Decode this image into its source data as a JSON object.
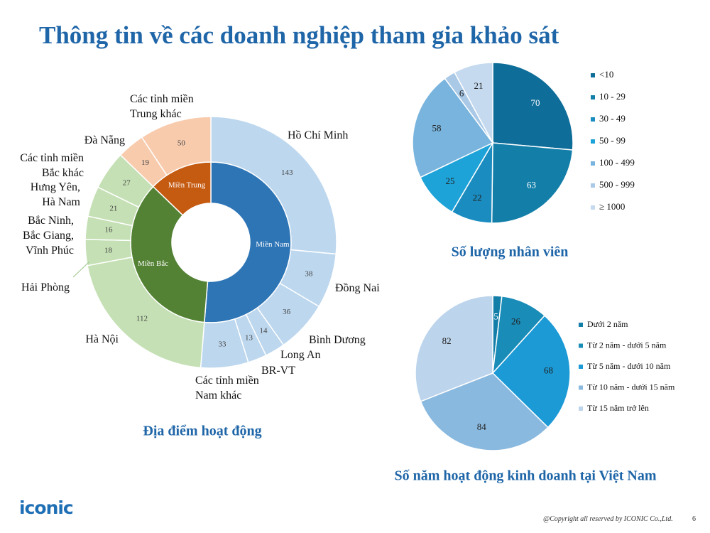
{
  "title": "Thông tin về các doanh nghiệp tham gia khảo sát",
  "logo": "iconic",
  "copyright": "@Copyright all reserved by ICONIC Co.,Ltd.",
  "page_number": "6",
  "chart_data": [
    {
      "type": "sunburst",
      "title": "Địa điểm hoạt động",
      "groups": [
        {
          "name": "Miền Nam",
          "color": "#2e75b6",
          "child_color": "#bdd7ee",
          "children": [
            {
              "name": "Hồ Chí Minh",
              "value": 143
            },
            {
              "name": "Đồng Nai",
              "value": 38
            },
            {
              "name": "Bình Dương",
              "value": 36
            },
            {
              "name": "Long An",
              "value": 14
            },
            {
              "name": "BR-VT",
              "value": 13
            },
            {
              "name": "Các tỉnh miền\nNam khác",
              "value": 33
            }
          ]
        },
        {
          "name": "Miền Bắc",
          "color": "#548235",
          "child_color": "#c5e0b4",
          "children": [
            {
              "name": "Hà Nội",
              "value": 112
            },
            {
              "name": "Hải Phòng",
              "value": 18
            },
            {
              "name": "Bắc Ninh,\nBắc Giang,\nVĩnh Phúc",
              "value": 16
            },
            {
              "name": "Hưng Yên,\nHà Nam",
              "value": 21
            },
            {
              "name": "Các tỉnh miền\nBắc khác",
              "value": 27
            }
          ]
        },
        {
          "name": "Miền Trung",
          "color": "#c55a11",
          "child_color": "#f8cbad",
          "children": [
            {
              "name": "Đà Nẵng",
              "value": 19
            },
            {
              "name": "Các tỉnh miền\nTrung khác",
              "value": 50
            }
          ]
        }
      ]
    },
    {
      "type": "pie",
      "title": "Số lượng nhân viên",
      "legend": "right",
      "categories": [
        "<10",
        "10 - 29",
        "30 - 49",
        "50 - 99",
        "100 - 499",
        "500 - 999",
        "≥ 1000"
      ],
      "values": [
        70,
        63,
        22,
        25,
        58,
        6,
        21
      ],
      "colors": [
        "#0e6d99",
        "#137fa9",
        "#1a8cc0",
        "#1ea3d9",
        "#78b4dd",
        "#a9c9e6",
        "#c5daef"
      ]
    },
    {
      "type": "pie",
      "title": "Số năm hoạt động kinh doanh tại Việt Nam",
      "legend": "right",
      "categories": [
        "Dưới 2 năm",
        "Từ 2 năm - dưới 5 năm",
        "Từ 5 năm - dưới 10 năm",
        "Từ 10 năm - dưới 15 năm",
        "Từ 15 năm trở lên"
      ],
      "values": [
        5,
        26,
        68,
        84,
        82
      ],
      "colors": [
        "#137fa9",
        "#1a8cb8",
        "#1b9ad6",
        "#8ab9df",
        "#bcd4ec"
      ]
    }
  ]
}
